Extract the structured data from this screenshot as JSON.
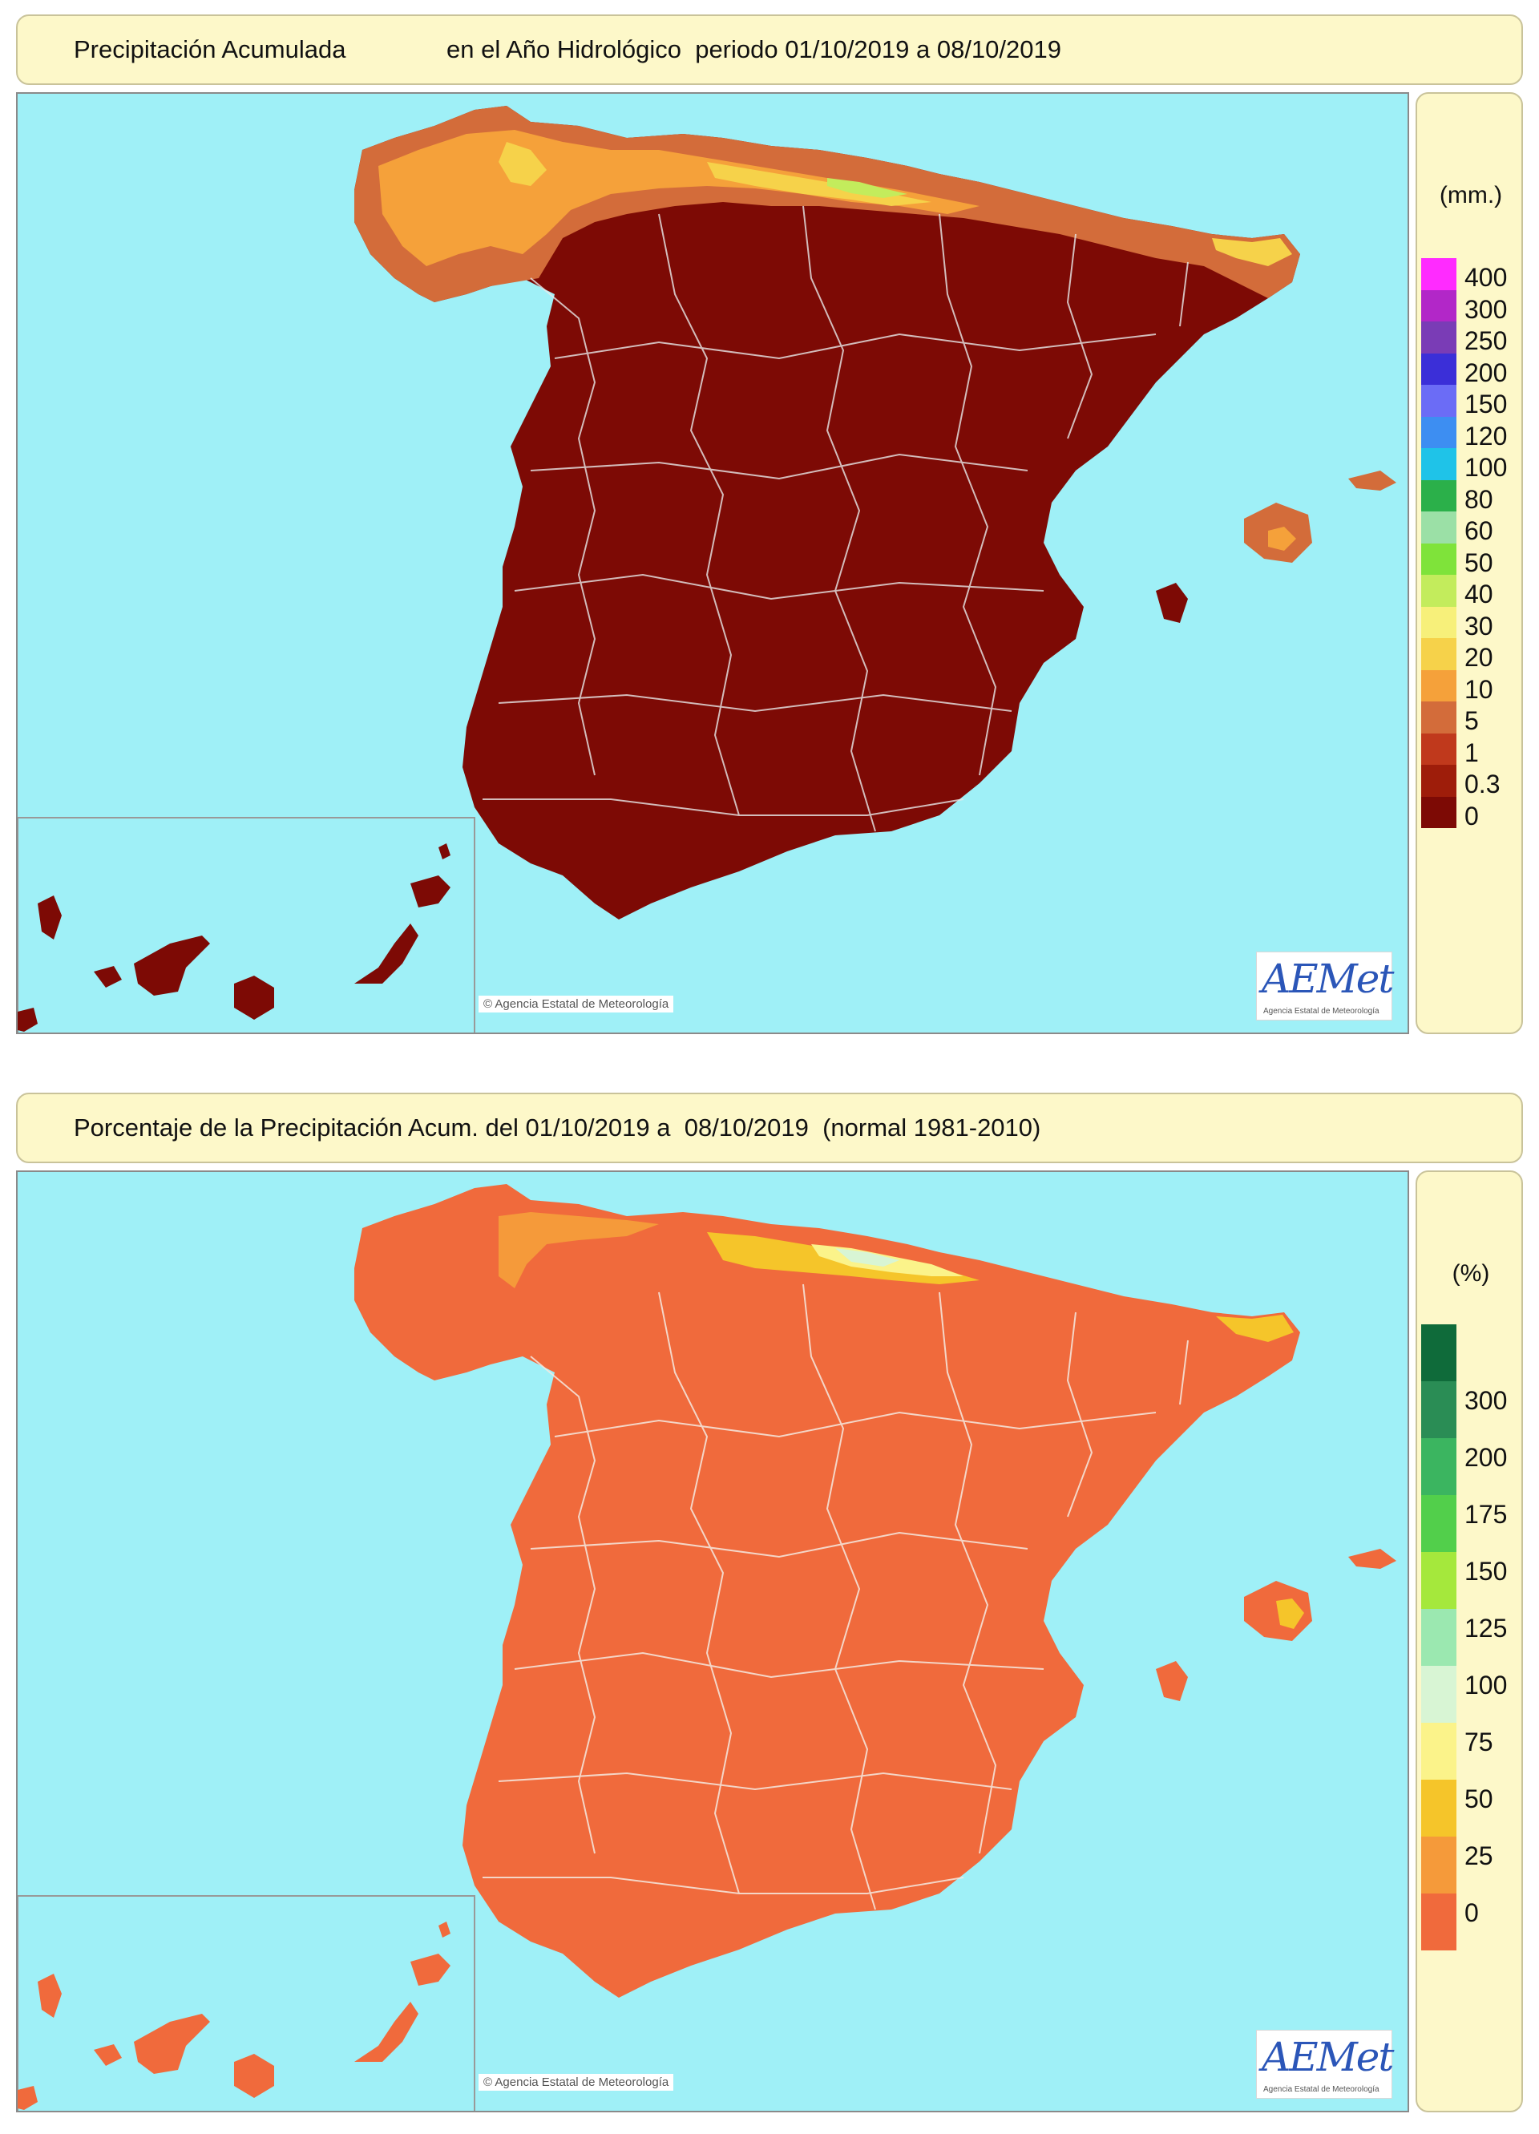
{
  "maps": [
    {
      "title_left": "Precipitación Acumulada",
      "title_right": "en el Año Hidrológico  periodo 01/10/2019 a 08/10/2019",
      "legend_unit": "(mm.)",
      "land_color": "#7d0a05",
      "legend": [
        {
          "label": "400",
          "color": "#ff2bff"
        },
        {
          "label": "300",
          "color": "#b227c8"
        },
        {
          "label": "250",
          "color": "#7a3cb6"
        },
        {
          "label": "200",
          "color": "#3b2fd8"
        },
        {
          "label": "150",
          "color": "#6b6cf6"
        },
        {
          "label": "120",
          "color": "#3d8ef2"
        },
        {
          "label": "100",
          "color": "#1fc3e8"
        },
        {
          "label": "80",
          "color": "#2bb04a"
        },
        {
          "label": "60",
          "color": "#9be0a6"
        },
        {
          "label": "50",
          "color": "#7fe33a"
        },
        {
          "label": "40",
          "color": "#c3ec5c"
        },
        {
          "label": "30",
          "color": "#f7f07a"
        },
        {
          "label": "20",
          "color": "#f6d24a"
        },
        {
          "label": "10",
          "color": "#f5a13a"
        },
        {
          "label": "5",
          "color": "#d36c3a"
        },
        {
          "label": "1",
          "color": "#c0391c"
        },
        {
          "label": "0.3",
          "color": "#9e1d0a"
        },
        {
          "label": "0",
          "color": "#7d0a05"
        }
      ],
      "copyright": "Agencia Estatal de Meteorología",
      "logo": "AEMet",
      "logo_sub": "Agencia Estatal de Meteorología"
    },
    {
      "title_left": "Porcentaje de la Precipitación Acum. del 01/10/2019 a  08/10/2019  (normal 1981-2010)",
      "title_right": "",
      "legend_unit": "(%)",
      "land_color": "#f06a3c",
      "legend": [
        {
          "label": "",
          "color": "#0f6b3a"
        },
        {
          "label": "300",
          "color": "#2a8d55"
        },
        {
          "label": "200",
          "color": "#3bb560"
        },
        {
          "label": "175",
          "color": "#52cf4b"
        },
        {
          "label": "150",
          "color": "#a5e83c"
        },
        {
          "label": "125",
          "color": "#9be8b0"
        },
        {
          "label": "100",
          "color": "#d8f5d4"
        },
        {
          "label": "75",
          "color": "#fbf38a"
        },
        {
          "label": "50",
          "color": "#f5c52a"
        },
        {
          "label": "25",
          "color": "#f59a3a"
        },
        {
          "label": "0",
          "color": "#f06a3c"
        }
      ],
      "copyright": "Agencia Estatal de Meteorología",
      "logo": "AEMet",
      "logo_sub": "Agencia Estatal de Meteorología"
    }
  ]
}
